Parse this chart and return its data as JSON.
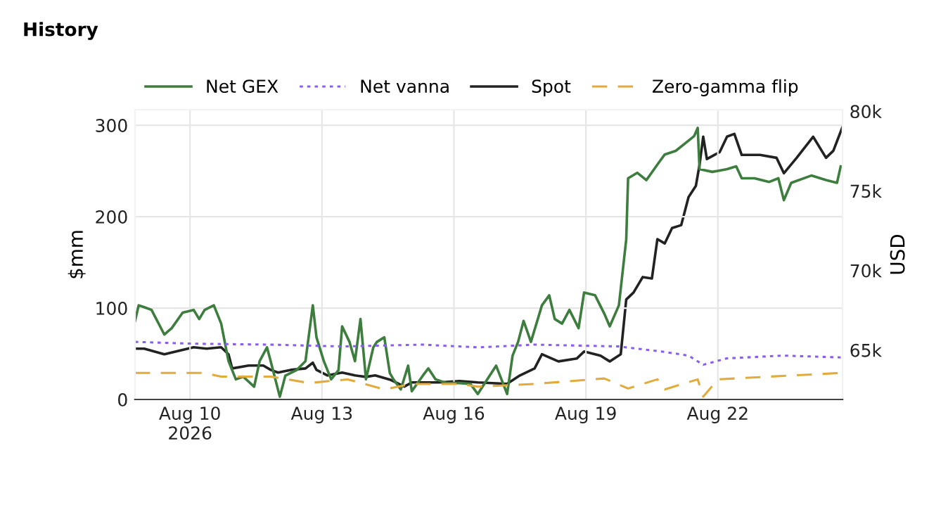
{
  "chart_data": {
    "type": "line",
    "title": "History",
    "ylabel": "$mm",
    "y2label": "USD",
    "xlim": [
      "2026-08-08T18:00",
      "2026-08-24T20:00"
    ],
    "xticks": [
      {
        "value": "2026-08-10",
        "label": "Aug 10\n2026"
      },
      {
        "value": "2026-08-13",
        "label": "Aug 13"
      },
      {
        "value": "2026-08-16",
        "label": "Aug 16"
      },
      {
        "value": "2026-08-19",
        "label": "Aug 19"
      },
      {
        "value": "2026-08-22",
        "label": "Aug 22"
      }
    ],
    "ylim": [
      0,
      317
    ],
    "yticks": [
      0,
      100,
      200,
      300
    ],
    "y2lim": [
      61900,
      80100
    ],
    "y2ticks": [
      {
        "value": 65000,
        "label": "65k"
      },
      {
        "value": 70000,
        "label": "70k"
      },
      {
        "value": 75000,
        "label": "75k"
      },
      {
        "value": 80000,
        "label": "80k"
      }
    ],
    "grid": true,
    "legend": "top left",
    "series": [
      {
        "name": "Net GEX",
        "color": "#3d7d3d",
        "line_style": "solid",
        "x": [
          "2026-08-08T18:00",
          "2026-08-08T20:00",
          "2026-08-08T23:00",
          "2026-08-09T03:00",
          "2026-08-09T10:00",
          "2026-08-09T14:00",
          "2026-08-09T20:00",
          "2026-08-10T02:00",
          "2026-08-10T05:00",
          "2026-08-10T08:00",
          "2026-08-10T13:00",
          "2026-08-10T17:00",
          "2026-08-10T21:00",
          "2026-08-11T01:00",
          "2026-08-11T05:00",
          "2026-08-11T11:00",
          "2026-08-11T14:00",
          "2026-08-11T18:00",
          "2026-08-11T20:00",
          "2026-08-12T01:00",
          "2026-08-12T04:00",
          "2026-08-12T10:00",
          "2026-08-12T15:00",
          "2026-08-12T19:00",
          "2026-08-12T21:00",
          "2026-08-13T01:00",
          "2026-08-13T05:00",
          "2026-08-13T09:00",
          "2026-08-13T11:00",
          "2026-08-13T15:00",
          "2026-08-13T18:00",
          "2026-08-13T21:00",
          "2026-08-14T00:00",
          "2026-08-14T04:00",
          "2026-08-14T06:00",
          "2026-08-14T10:00",
          "2026-08-14T13:00",
          "2026-08-14T15:00",
          "2026-08-14T19:00",
          "2026-08-14T23:00",
          "2026-08-15T01:00",
          "2026-08-15T07:00",
          "2026-08-15T10:00",
          "2026-08-15T14:00",
          "2026-08-15T20:00",
          "2026-08-16T03:00",
          "2026-08-16T09:00",
          "2026-08-16T13:00",
          "2026-08-16T23:00",
          "2026-08-17T05:00",
          "2026-08-17T08:00",
          "2026-08-17T11:00",
          "2026-08-17T14:00",
          "2026-08-17T18:00",
          "2026-08-18T00:00",
          "2026-08-18T04:00",
          "2026-08-18T07:00",
          "2026-08-18T11:00",
          "2026-08-18T15:00",
          "2026-08-18T20:00",
          "2026-08-18T23:00",
          "2026-08-19T05:00",
          "2026-08-19T10:00",
          "2026-08-19T13:00",
          "2026-08-19T18:00",
          "2026-08-19T22:00",
          "2026-08-19T23:00",
          "2026-08-20T04:00",
          "2026-08-20T09:00",
          "2026-08-20T15:00",
          "2026-08-20T19:00",
          "2026-08-21T01:00",
          "2026-08-21T06:00",
          "2026-08-21T11:00",
          "2026-08-21T13:00",
          "2026-08-21T14:00",
          "2026-08-21T21:00",
          "2026-08-22T05:00",
          "2026-08-22T10:00",
          "2026-08-22T13:00",
          "2026-08-22T20:00",
          "2026-08-23T04:00",
          "2026-08-23T09:00",
          "2026-08-23T12:00",
          "2026-08-23T16:00",
          "2026-08-24T03:00",
          "2026-08-24T11:00",
          "2026-08-24T17:00",
          "2026-08-24T19:00"
        ],
        "values": [
          86,
          103,
          101,
          98,
          71,
          78,
          95,
          98,
          88,
          98,
          103,
          83,
          42,
          22,
          25,
          14,
          42,
          57,
          42,
          3,
          26,
          32,
          42,
          103,
          68,
          42,
          22,
          32,
          80,
          63,
          42,
          88,
          22,
          57,
          63,
          68,
          29,
          22,
          11,
          37,
          9,
          26,
          34,
          22,
          18,
          18,
          17,
          6,
          37,
          6,
          48,
          63,
          86,
          63,
          103,
          114,
          88,
          83,
          98,
          78,
          117,
          114,
          94,
          80,
          103,
          175,
          242,
          248,
          240,
          257,
          268,
          272,
          280,
          288,
          297,
          252,
          249,
          252,
          255,
          242,
          242,
          238,
          242,
          218,
          237,
          245,
          240,
          237,
          255
        ]
      },
      {
        "name": "Net vanna",
        "color": "#8a5cf5",
        "line_style": "dotted",
        "x": [
          "2026-08-08T18:00",
          "2026-08-10T02:00",
          "2026-08-11T20:00",
          "2026-08-13T11:00",
          "2026-08-15T07:00",
          "2026-08-16T13:00",
          "2026-08-17T20:00",
          "2026-08-19T18:00",
          "2026-08-20T19:00",
          "2026-08-21T08:00",
          "2026-08-21T16:00",
          "2026-08-22T05:00",
          "2026-08-23T12:00",
          "2026-08-24T19:00"
        ],
        "values": [
          63,
          61,
          60,
          58,
          60,
          57,
          60,
          58,
          52,
          48,
          38,
          45,
          48,
          46
        ]
      },
      {
        "name": "Spot",
        "color": "#222222",
        "line_style": "solid",
        "axis": "y2",
        "x": [
          "2026-08-08T18:00",
          "2026-08-08T23:00",
          "2026-08-09T10:00",
          "2026-08-10T02:00",
          "2026-08-10T09:00",
          "2026-08-10T17:00",
          "2026-08-10T21:00",
          "2026-08-10T23:00",
          "2026-08-11T08:00",
          "2026-08-11T16:00",
          "2026-08-11T20:00",
          "2026-08-12T00:00",
          "2026-08-12T07:00",
          "2026-08-12T15:00",
          "2026-08-12T19:00",
          "2026-08-12T21:00",
          "2026-08-13T03:00",
          "2026-08-13T11:00",
          "2026-08-13T18:00",
          "2026-08-14T00:00",
          "2026-08-14T05:00",
          "2026-08-14T13:00",
          "2026-08-14T21:00",
          "2026-08-15T01:00",
          "2026-08-15T09:00",
          "2026-08-15T16:00",
          "2026-08-16T03:00",
          "2026-08-16T13:00",
          "2026-08-17T05:00",
          "2026-08-17T12:00",
          "2026-08-17T20:00",
          "2026-08-18T00:00",
          "2026-08-18T09:00",
          "2026-08-18T19:00",
          "2026-08-18T23:00",
          "2026-08-19T08:00",
          "2026-08-19T13:00",
          "2026-08-19T19:00",
          "2026-08-19T22:00",
          "2026-08-20T02:00",
          "2026-08-20T07:00",
          "2026-08-20T12:00",
          "2026-08-20T15:00",
          "2026-08-20T19:00",
          "2026-08-20T23:00",
          "2026-08-21T04:00",
          "2026-08-21T08:00",
          "2026-08-21T12:00",
          "2026-08-21T14:00",
          "2026-08-21T16:00",
          "2026-08-21T18:00",
          "2026-08-22T01:00",
          "2026-08-22T05:00",
          "2026-08-22T09:00",
          "2026-08-22T13:00",
          "2026-08-22T23:00",
          "2026-08-23T08:00",
          "2026-08-23T12:00",
          "2026-08-23T19:00",
          "2026-08-24T04:00",
          "2026-08-24T11:00",
          "2026-08-24T15:00",
          "2026-08-24T20:00"
        ],
        "values": [
          65090,
          65090,
          64740,
          65180,
          65090,
          65180,
          64740,
          63850,
          64030,
          64030,
          63760,
          63590,
          63760,
          63850,
          64210,
          63760,
          63410,
          63590,
          63410,
          63320,
          63410,
          63150,
          62710,
          62970,
          62970,
          62970,
          63060,
          62970,
          62880,
          63410,
          63850,
          64740,
          64290,
          64470,
          64910,
          64650,
          64290,
          64740,
          68180,
          68620,
          69590,
          69500,
          71970,
          71700,
          72670,
          72850,
          74610,
          75320,
          76640,
          78410,
          77000,
          77440,
          78410,
          78580,
          77260,
          77260,
          77080,
          76110,
          77080,
          78400,
          77080,
          77520,
          79020
        ]
      },
      {
        "name": "Zero-gamma flip",
        "color": "#e3aa3c",
        "line_style": "dashed",
        "x": [
          "2026-08-08T18:00",
          "2026-08-10T08:00",
          "2026-08-10T17:00",
          "2026-08-11T01:00",
          "2026-08-11T20:00",
          "2026-08-12T17:00",
          "2026-08-13T14:00",
          "2026-08-14T10:00",
          "2026-08-15T01:00",
          "2026-08-16T03:00",
          "2026-08-16T13:00",
          "2026-08-17T20:00",
          "2026-08-19T10:00",
          "2026-08-19T23:00",
          "2026-08-20T15:00",
          "2026-08-20T19:00",
          "2026-08-21T13:00",
          "2026-08-21T16:00",
          "2026-08-22T00:00",
          "2026-08-23T04:00",
          "2026-08-24T19:00"
        ],
        "values": [
          29,
          29,
          25,
          25,
          25,
          18,
          22,
          11,
          17,
          17,
          14,
          17,
          23,
          12,
          22,
          11,
          22,
          3,
          22,
          25,
          29
        ]
      }
    ]
  }
}
